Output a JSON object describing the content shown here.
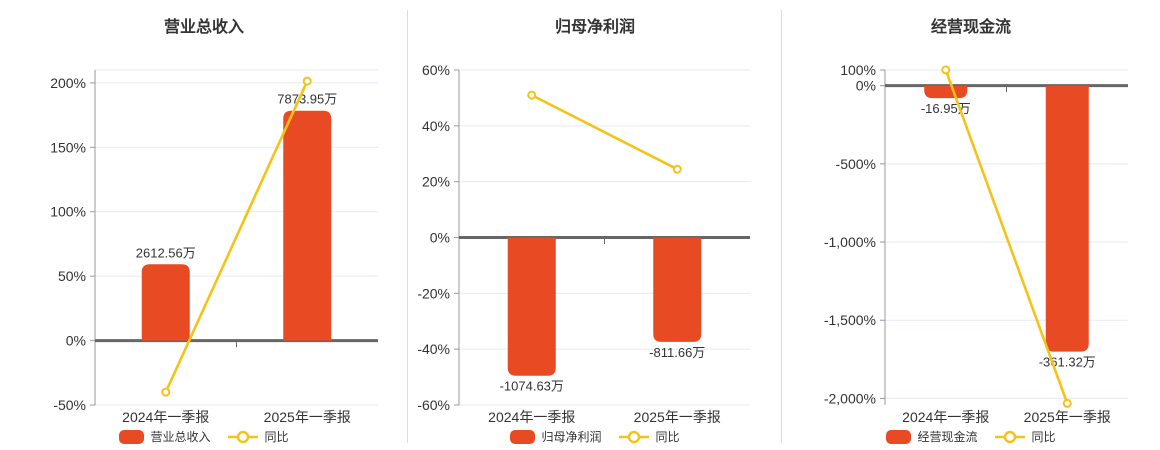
{
  "page": {
    "background": "#ffffff"
  },
  "colors": {
    "bar": "#e84a23",
    "line": "#f4c318",
    "grid": "#e4eaf3",
    "zero_axis": "#666666",
    "axis": "#999999",
    "text": "#333333",
    "divider": "#dcdcdc",
    "marker_fill": "#ffffff"
  },
  "chart_data": [
    {
      "type": "bar",
      "title": "营业总收入",
      "categories": [
        "2024年一季报",
        "2025年一季报"
      ],
      "series": [
        {
          "name": "营业总收入",
          "type": "bar",
          "unit": "万",
          "values": [
            2612.56,
            7873.95
          ],
          "labels": [
            "2612.56万",
            "7873.95万"
          ],
          "plotted_on_pct_axis": [
            59.2,
            178.4
          ]
        },
        {
          "name": "同比",
          "type": "line",
          "unit": "%",
          "values": [
            -40,
            201.39
          ]
        }
      ],
      "ylim": [
        -50,
        210
      ],
      "yticks": [
        200,
        150,
        100,
        50,
        0,
        -50
      ],
      "ytick_labels": [
        "200%",
        "150%",
        "100%",
        "50%",
        "0%",
        "-50%"
      ],
      "grid": true,
      "legend_position": "bottom",
      "legend": [
        "营业总收入",
        "同比"
      ]
    },
    {
      "type": "bar",
      "title": "归母净利润",
      "categories": [
        "2024年一季报",
        "2025年一季报"
      ],
      "series": [
        {
          "name": "归母净利润",
          "type": "bar",
          "unit": "万",
          "values": [
            -1074.63,
            -811.66
          ],
          "labels": [
            "-1074.63万",
            "-811.66万"
          ],
          "plotted_on_pct_axis": [
            -49.5,
            -37.4
          ]
        },
        {
          "name": "同比",
          "type": "line",
          "unit": "%",
          "values": [
            51,
            24.47
          ]
        }
      ],
      "ylim": [
        -60,
        60
      ],
      "yticks": [
        60,
        40,
        20,
        0,
        -20,
        -40,
        -60
      ],
      "ytick_labels": [
        "60%",
        "40%",
        "20%",
        "0%",
        "-20%",
        "-40%",
        "-60%"
      ],
      "grid": true,
      "legend_position": "bottom",
      "legend": [
        "归母净利润",
        "同比"
      ]
    },
    {
      "type": "bar",
      "title": "经营现金流",
      "categories": [
        "2024年一季报",
        "2025年一季报"
      ],
      "series": [
        {
          "name": "经营现金流",
          "type": "bar",
          "unit": "万",
          "values": [
            -16.95,
            -361.32
          ],
          "labels": [
            "-16.95万",
            "-361.32万"
          ],
          "plotted_on_pct_axis": [
            -80,
            -1701
          ]
        },
        {
          "name": "同比",
          "type": "line",
          "unit": "%",
          "values": [
            100.4,
            -2031.7
          ]
        }
      ],
      "ylim": [
        -2042,
        100
      ],
      "yticks": [
        100,
        0,
        -500,
        -1000,
        -1500,
        -2000
      ],
      "ytick_labels": [
        "100%",
        "0%",
        "-500%",
        "-1,000%",
        "-1,500%",
        "-2,000%"
      ],
      "grid": true,
      "legend_position": "bottom",
      "legend": [
        "经营现金流",
        "同比"
      ]
    }
  ]
}
